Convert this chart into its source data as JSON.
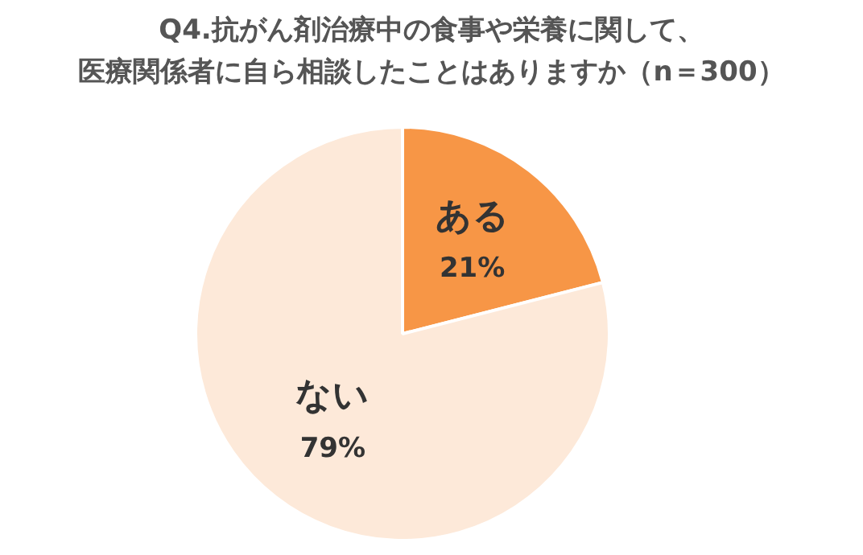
{
  "chart_data": {
    "type": "pie",
    "title": "Q4.抗がん剤治療中の食事や栄養に関して、医療関係者に自ら相談したことはありますか（n＝300）",
    "categories": [
      "ある",
      "ない"
    ],
    "values": [
      21,
      79
    ],
    "value_labels": [
      "21%",
      "79%"
    ],
    "colors": [
      "#f79646",
      "#fde9d9"
    ],
    "legend": false
  }
}
